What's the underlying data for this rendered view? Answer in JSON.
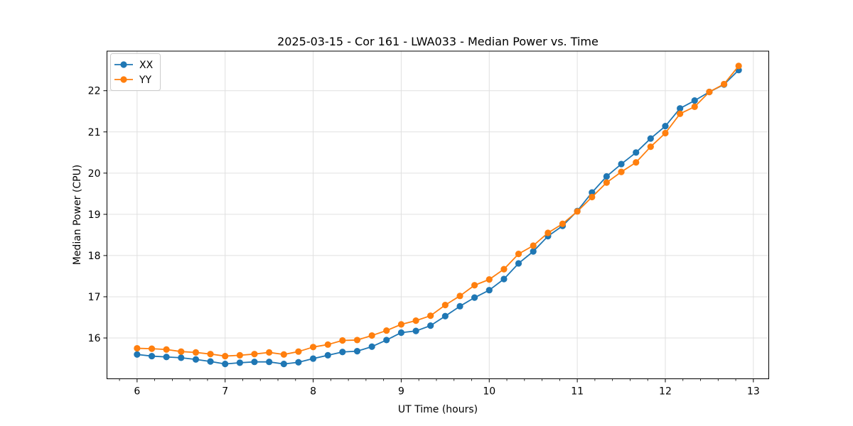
{
  "figure": {
    "title": "2025-03-15 - Cor 161 - LWA033 - Median Power vs. Time",
    "xlabel": "UT Time (hours)",
    "ylabel": "Median Power (CPU)"
  },
  "legend": {
    "position": "upper left",
    "items": [
      {
        "label": "XX",
        "color": "#1f77b4"
      },
      {
        "label": "YY",
        "color": "#ff7f0e"
      }
    ]
  },
  "chart_data": {
    "type": "line",
    "title": "2025-03-15 - Cor 161 - LWA033 - Median Power vs. Time",
    "xlabel": "UT Time (hours)",
    "ylabel": "Median Power (CPU)",
    "grid": true,
    "grid_color": "#e0e0e0",
    "background": "#ffffff",
    "legend_position": "upper left",
    "xlim": [
      5.658,
      13.175
    ],
    "ylim": [
      15.01,
      22.96
    ],
    "x_major_ticks": [
      6,
      7,
      8,
      9,
      10,
      11,
      12,
      13
    ],
    "x_tick_labels": [
      "6",
      "7",
      "8",
      "9",
      "10",
      "11",
      "12",
      "13"
    ],
    "x_minor_tick_step": 0.2,
    "y_major_ticks": [
      16,
      17,
      18,
      19,
      20,
      21,
      22
    ],
    "y_tick_labels": [
      "16",
      "17",
      "18",
      "19",
      "20",
      "21",
      "22"
    ],
    "x": [
      6.0,
      6.167,
      6.333,
      6.5,
      6.667,
      6.833,
      7.0,
      7.167,
      7.333,
      7.5,
      7.667,
      7.833,
      8.0,
      8.167,
      8.333,
      8.5,
      8.667,
      8.833,
      9.0,
      9.167,
      9.333,
      9.5,
      9.667,
      9.833,
      10.0,
      10.167,
      10.333,
      10.5,
      10.667,
      10.833,
      11.0,
      11.167,
      11.333,
      11.5,
      11.667,
      11.833,
      12.0,
      12.167,
      12.333,
      12.5,
      12.667,
      12.833
    ],
    "series": [
      {
        "name": "XX",
        "color": "#1f77b4",
        "marker": "circle",
        "values": [
          15.6,
          15.56,
          15.54,
          15.52,
          15.48,
          15.43,
          15.37,
          15.4,
          15.42,
          15.42,
          15.37,
          15.41,
          15.5,
          15.58,
          15.66,
          15.68,
          15.79,
          15.95,
          16.13,
          16.17,
          16.3,
          16.53,
          16.77,
          16.98,
          17.16,
          17.43,
          17.81,
          18.1,
          18.47,
          18.72,
          19.08,
          19.53,
          19.92,
          20.22,
          20.5,
          20.84,
          21.14,
          21.57,
          21.76,
          21.97,
          22.15,
          22.5
        ]
      },
      {
        "name": "YY",
        "color": "#ff7f0e",
        "marker": "circle",
        "values": [
          15.75,
          15.74,
          15.72,
          15.67,
          15.65,
          15.61,
          15.56,
          15.58,
          15.61,
          15.65,
          15.6,
          15.67,
          15.78,
          15.84,
          15.94,
          15.95,
          16.06,
          16.18,
          16.33,
          16.42,
          16.54,
          16.8,
          17.02,
          17.28,
          17.42,
          17.67,
          18.04,
          18.24,
          18.55,
          18.77,
          19.07,
          19.42,
          19.77,
          20.03,
          20.26,
          20.64,
          20.97,
          21.44,
          21.61,
          21.97,
          22.16,
          22.6
        ]
      }
    ]
  }
}
